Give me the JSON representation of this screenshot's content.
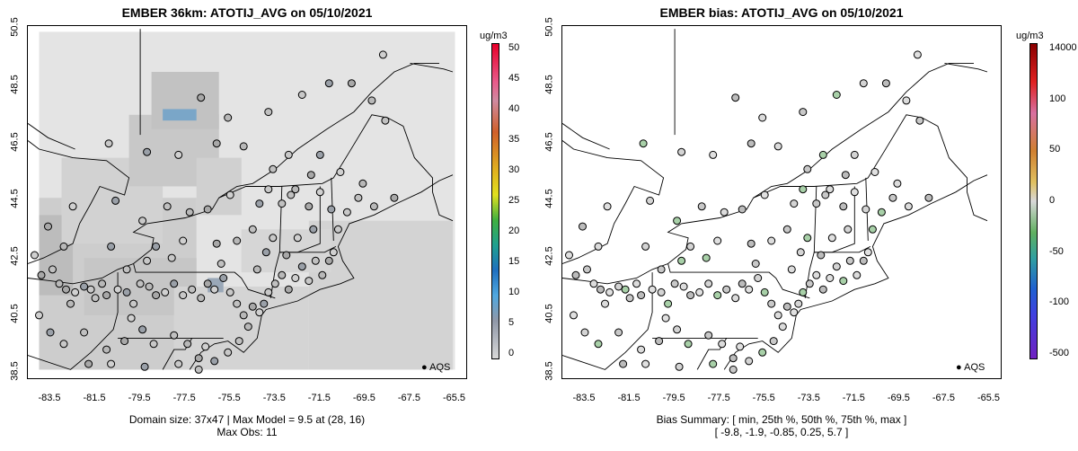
{
  "left": {
    "title": "EMBER 36km: ATOTIJ_AVG on 05/10/2021",
    "caption_line1": "Domain size: 37x47 | Max Model = 9.5 at (28, 16)",
    "caption_line2": "Max Obs: 11",
    "colorbar_unit": "ug/m3",
    "colorbar_labels": [
      "50",
      "45",
      "40",
      "35",
      "30",
      "25",
      "20",
      "15",
      "10",
      "5",
      "0"
    ],
    "legend": "AQS"
  },
  "right": {
    "title": "EMBER bias: ATOTIJ_AVG on 05/10/2021",
    "caption_line1": "Bias Summary: [ min, 25th %, 50th %, 75th %, max ]",
    "caption_line2": "[ -9.8,   -1.9,   -0.85,   0.25,   5.7 ]",
    "colorbar_unit": "ug/m3",
    "colorbar_labels": [
      "14000",
      "100",
      "50",
      "0",
      "-50",
      "-100",
      "-500"
    ],
    "legend": "AQS"
  },
  "axes": {
    "x_ticks": [
      "-83.5",
      "-81.5",
      "-79.5",
      "-77.5",
      "-75.5",
      "-73.5",
      "-71.5",
      "-69.5",
      "-67.5",
      "-65.5"
    ],
    "y_ticks": [
      "50.5",
      "48.5",
      "46.5",
      "44.5",
      "42.5",
      "40.5",
      "38.5"
    ]
  },
  "chart_data": [
    {
      "type": "heatmap",
      "title": "EMBER 36km: ATOTIJ_AVG on 05/10/2021",
      "xlim": [
        -84.5,
        -65.0
      ],
      "ylim": [
        38.3,
        50.6
      ],
      "colorbar_range": [
        0,
        50
      ],
      "unit": "ug/m3",
      "max_model": 9.5,
      "max_obs": 11
    },
    {
      "type": "scatter",
      "title": "EMBER bias: ATOTIJ_AVG on 05/10/2021",
      "xlim": [
        -84.5,
        -65.0
      ],
      "ylim": [
        38.3,
        50.6
      ],
      "bias_summary": {
        "min": -9.8,
        "p25": -1.9,
        "p50": -0.85,
        "p75": 0.25,
        "max": 5.7
      },
      "unit": "ug/m3"
    }
  ]
}
